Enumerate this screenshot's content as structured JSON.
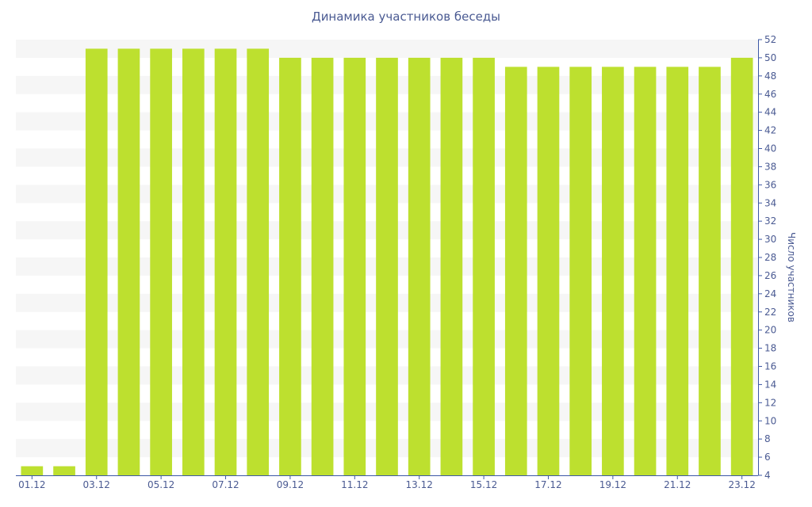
{
  "chart_data": {
    "type": "bar",
    "title": "Динамика участников беседы",
    "xlabel": "",
    "ylabel": "Число участников",
    "ylim": [
      4,
      52
    ],
    "ytick_step": 2,
    "grid": "alternating horizontal bands",
    "y_axis_side": "right",
    "bar_color": "#bde02f",
    "band_color": "#f6f6f6",
    "axis_color": "#3d58a6",
    "categories": [
      "01.12",
      "02.12",
      "03.12",
      "04.12",
      "05.12",
      "06.12",
      "07.12",
      "08.12",
      "09.12",
      "10.12",
      "11.12",
      "12.12",
      "13.12",
      "14.12",
      "15.12",
      "16.12",
      "17.12",
      "18.12",
      "19.12",
      "20.12",
      "21.12",
      "22.12",
      "23.12"
    ],
    "xtick_labels": [
      "01.12",
      "03.12",
      "05.12",
      "07.12",
      "09.12",
      "11.12",
      "13.12",
      "15.12",
      "17.12",
      "19.12",
      "21.12",
      "23.12"
    ],
    "values": [
      5,
      5,
      51,
      51,
      51,
      51,
      51,
      51,
      50,
      50,
      50,
      50,
      50,
      50,
      50,
      49,
      49,
      49,
      49,
      49,
      49,
      49,
      50
    ]
  }
}
